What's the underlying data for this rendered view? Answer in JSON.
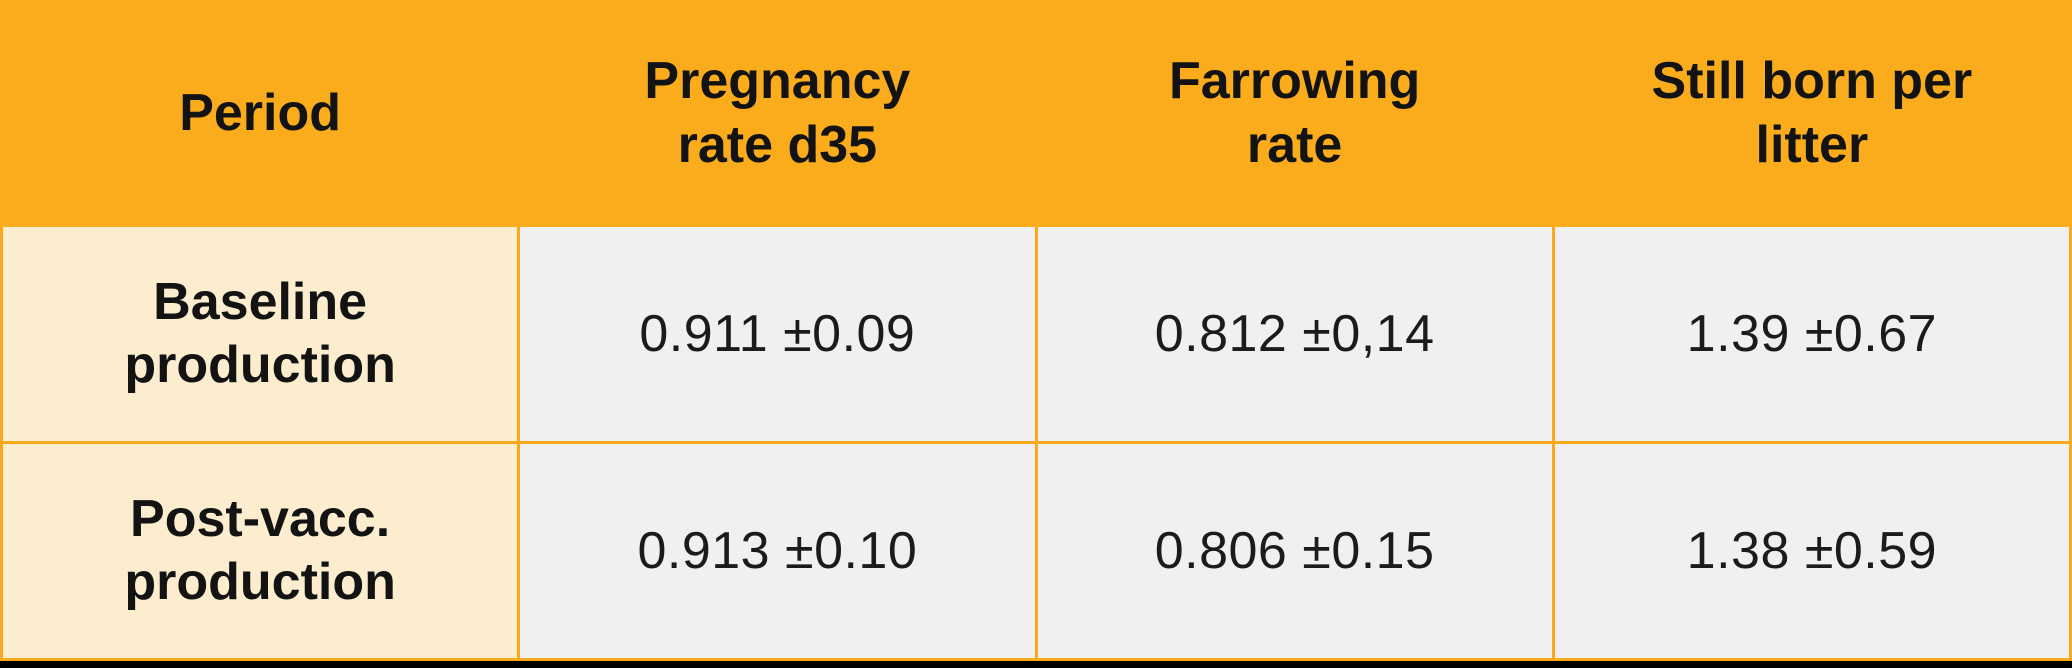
{
  "table": {
    "columns": [
      {
        "label": "Period"
      },
      {
        "label": "Pregnancy\nrate d35"
      },
      {
        "label": "Farrowing\nrate"
      },
      {
        "label": "Still born per\nlitter"
      }
    ],
    "rows": [
      {
        "period": "Baseline\nproduction",
        "pregnancy_rate_d35": "0.911 ±0.09",
        "farrowing_rate": "0.812 ±0,14",
        "stillborn_per_litter": "1.39 ±0.67"
      },
      {
        "period": "Post-vacc.\nproduction",
        "pregnancy_rate_d35": "0.913 ±0.10",
        "farrowing_rate": "0.806 ±0.15",
        "stillborn_per_litter": "1.38 ±0.59"
      }
    ]
  },
  "colors": {
    "header_bg": "#FAAC1D",
    "row_header_bg": "#FCEDCE",
    "value_cell_bg": "#F0F0F1",
    "grid_border": "#F9A91C",
    "text": "#161616",
    "bottom_strip": "#000000"
  },
  "chart_data": {
    "type": "table",
    "columns": [
      "Period",
      "Pregnancy rate d35",
      "Farrowing rate",
      "Still born per litter"
    ],
    "rows": [
      [
        "Baseline production",
        "0.911 ±0.09",
        "0.812 ±0,14",
        "1.39 ±0.67"
      ],
      [
        "Post-vacc. production",
        "0.913 ±0.10",
        "0.806 ±0.15",
        "1.38 ±0.59"
      ]
    ],
    "values_numeric": {
      "baseline": {
        "pregnancy_rate_d35": 0.911,
        "pregnancy_rate_d35_sd": 0.09,
        "farrowing_rate": 0.812,
        "farrowing_rate_sd": 0.14,
        "stillborn_per_litter": 1.39,
        "stillborn_per_litter_sd": 0.67
      },
      "post_vacc": {
        "pregnancy_rate_d35": 0.913,
        "pregnancy_rate_d35_sd": 0.1,
        "farrowing_rate": 0.806,
        "farrowing_rate_sd": 0.15,
        "stillborn_per_litter": 1.38,
        "stillborn_per_litter_sd": 0.59
      }
    }
  }
}
